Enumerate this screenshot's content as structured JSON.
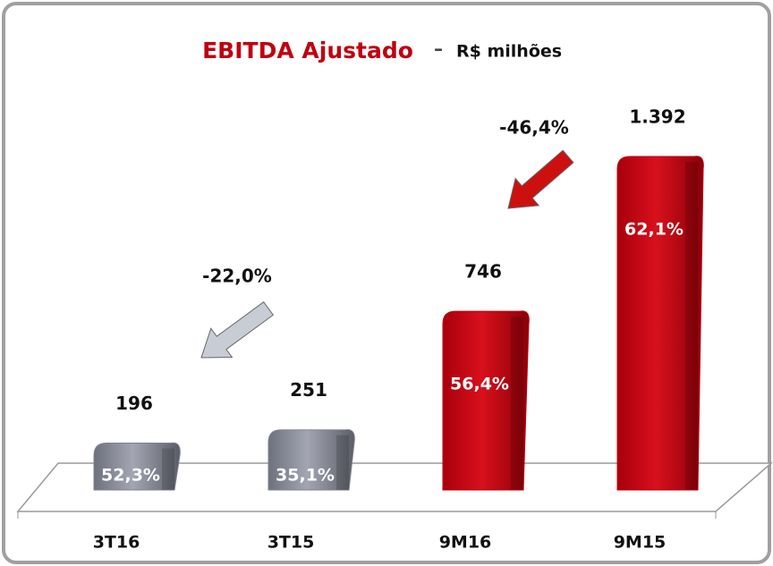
{
  "chart_data": {
    "type": "bar",
    "title": "EBITDA Ajustado",
    "title_separator": "–",
    "subtitle": "R$ milhões",
    "categories": [
      "3T16",
      "3T15",
      "9M16",
      "9M15"
    ],
    "values": [
      196,
      251,
      746,
      1392
    ],
    "value_labels": [
      "196",
      "251",
      "746",
      "1.392"
    ],
    "margin_labels": [
      "52,3%",
      "35,1%",
      "56,4%",
      "62,1%"
    ],
    "colors": [
      "#80838f",
      "#80838f",
      "#c00010",
      "#c00010"
    ],
    "annotations": [
      {
        "text": "-22,0%",
        "color": "#c8ccd4"
      },
      {
        "text": "-46,4%",
        "color": "#cc1010"
      }
    ]
  }
}
